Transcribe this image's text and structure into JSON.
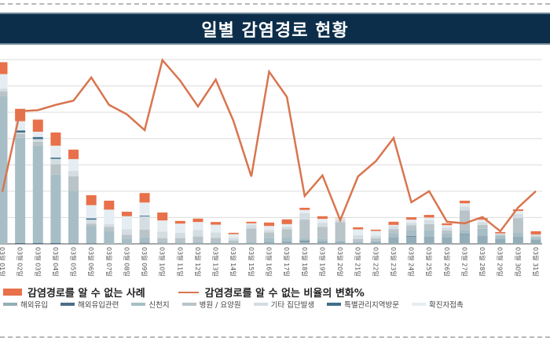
{
  "title": "일별 감염경로 현황",
  "colors": {
    "header": "#0d2e4a",
    "unknown": "#e8704a",
    "line": "#d9754f",
    "overseas": "#94aeb9",
    "overseas_related": "#4f6e89",
    "shincheonji": "#a8bec6",
    "hospital": "#b9c4c9",
    "group": "#d3dde2",
    "special_region": "#3e6f8a",
    "contact": "#e5edf2",
    "grid": "#dcdcdc"
  },
  "chart_data": {
    "type": "bar",
    "title": "일별 감염경로 현황",
    "xlabel": "",
    "ylabel": "",
    "grid": true,
    "legend_position": "bottom",
    "categories": [
      "03월 01일",
      "03월 02일",
      "03월 03일",
      "03월 04일",
      "03월 05일",
      "03월 06일",
      "03월 07일",
      "03월 08일",
      "03월 09일",
      "03월 10일",
      "03월 11일",
      "03월 12일",
      "03월 13일",
      "03월 14일",
      "03월 15일",
      "03월 16일",
      "03월 17일",
      "03월 18일",
      "03월 19일",
      "03월 20일",
      "03월 21일",
      "03월 22일",
      "03월 23일",
      "03월 24일",
      "03월 25일",
      "03월 26일",
      "03월 27일",
      "03월 28일",
      "03월 29일",
      "03월 30일",
      "03월 31일"
    ],
    "ylim": [
      0,
      700
    ],
    "series": [
      {
        "name": "해외유입",
        "key": "overseas",
        "values": [
          0,
          0,
          0,
          0,
          0,
          0,
          0,
          0,
          2,
          2,
          2,
          3,
          3,
          2,
          3,
          8,
          10,
          10,
          10,
          8,
          5,
          8,
          25,
          28,
          28,
          26,
          35,
          32,
          20,
          28,
          15
        ]
      },
      {
        "name": "해외유입관련",
        "key": "overseas_related",
        "values": [
          0,
          3,
          3,
          3,
          2,
          2,
          0,
          0,
          2,
          0,
          0,
          0,
          0,
          0,
          0,
          0,
          0,
          2,
          0,
          0,
          0,
          0,
          0,
          2,
          0,
          0,
          2,
          0,
          0,
          0,
          0
        ]
      },
      {
        "name": "신천지",
        "key": "shincheonji",
        "values": [
          560,
          400,
          370,
          260,
          200,
          65,
          50,
          20,
          20,
          5,
          5,
          5,
          5,
          3,
          5,
          15,
          15,
          10,
          10,
          5,
          3,
          3,
          15,
          22,
          25,
          15,
          15,
          25,
          10,
          15,
          8
        ]
      },
      {
        "name": "병원 / 요양원",
        "key": "hospital",
        "values": [
          20,
          15,
          15,
          40,
          55,
          10,
          15,
          15,
          30,
          15,
          15,
          20,
          15,
          8,
          50,
          20,
          30,
          70,
          45,
          70,
          10,
          10,
          15,
          18,
          22,
          10,
          75,
          15,
          5,
          55,
          5
        ]
      },
      {
        "name": "기타 집단발생",
        "key": "group",
        "values": [
          10,
          5,
          10,
          20,
          20,
          15,
          10,
          20,
          50,
          25,
          20,
          25,
          20,
          10,
          15,
          10,
          10,
          25,
          15,
          10,
          15,
          10,
          12,
          10,
          15,
          10,
          15,
          10,
          5,
          15,
          8
        ]
      },
      {
        "name": "특별관리지역방문",
        "key": "special_region",
        "values": [
          0,
          8,
          8,
          5,
          0,
          5,
          0,
          0,
          3,
          0,
          0,
          0,
          0,
          0,
          0,
          0,
          0,
          0,
          0,
          0,
          0,
          0,
          0,
          0,
          0,
          0,
          0,
          0,
          0,
          0,
          0
        ]
      },
      {
        "name": "확진자접촉",
        "key": "contact",
        "values": [
          55,
          35,
          20,
          45,
          45,
          50,
          55,
          50,
          50,
          42,
          35,
          30,
          30,
          14,
          5,
          15,
          10,
          12,
          15,
          5,
          22,
          18,
          5,
          12,
          10,
          10,
          12,
          10,
          0,
          12,
          0
        ]
      },
      {
        "name": "감염경로를 알 수 없는 사례",
        "key": "unknown",
        "values": [
          45,
          47,
          46,
          50,
          36,
          38,
          34,
          17,
          36,
          30,
          10,
          13,
          10,
          5,
          6,
          13,
          18,
          8,
          10,
          1,
          8,
          5,
          12,
          9,
          10,
          7,
          10,
          6,
          5,
          6,
          12
        ]
      }
    ],
    "line": {
      "name": "감염경로를 알 수 없는 비율의 변화%",
      "ylim": [
        0,
        35
      ],
      "values": [
        9.9,
        25.2,
        25.4,
        26.4,
        27.2,
        31.6,
        26.4,
        24.6,
        21.6,
        34.9,
        31.0,
        26.1,
        31.2,
        23.3,
        12.8,
        32.7,
        27.9,
        9.1,
        13.0,
        4.5,
        12.8,
        15.7,
        20.1,
        7.9,
        10.0,
        4.2,
        3.9,
        5.1,
        2.4,
        6.9,
        10.0
      ]
    }
  },
  "legend": {
    "row1": [
      {
        "label": "감염경로를 알 수 없는 사례",
        "type": "bar",
        "key": "unknown"
      },
      {
        "label": "감염경로를 알 수 없는 비율의 변화%",
        "type": "line",
        "key": "line"
      }
    ],
    "row2": [
      {
        "label": "해외유입",
        "key": "overseas"
      },
      {
        "label": "해외유입관련",
        "key": "overseas_related"
      },
      {
        "label": "신천지",
        "key": "shincheonji"
      },
      {
        "label": "병원 / 요양원",
        "key": "hospital"
      },
      {
        "label": "기타 집단발생",
        "key": "group"
      },
      {
        "label": "특별관리지역방문",
        "key": "special_region"
      },
      {
        "label": "확진자접촉",
        "key": "contact"
      }
    ]
  }
}
